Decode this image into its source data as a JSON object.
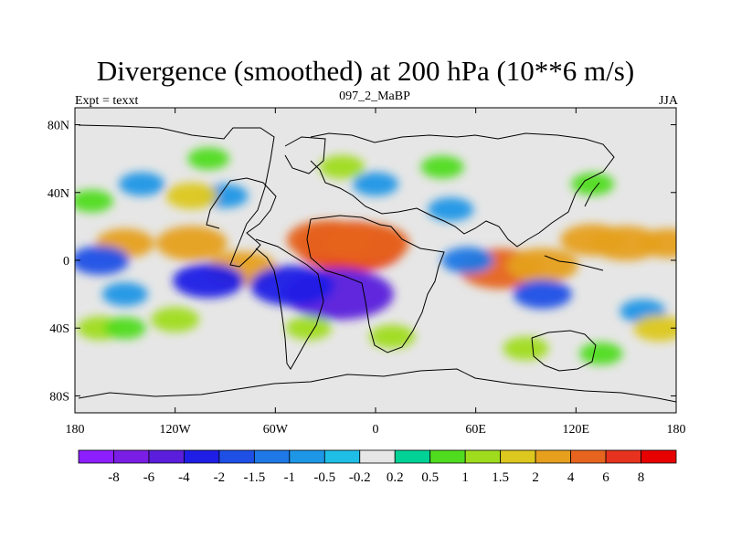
{
  "title": "Divergence (smoothed) at 200 hPa (10**6 m/s)",
  "left_label": "Expt = texxt",
  "center_label": "097_2_MaBP",
  "right_label": "JJA",
  "chart_data": {
    "type": "heatmap",
    "variable": "Divergence (smoothed) at 200 hPa",
    "units": "10**6 m/s",
    "season": "JJA",
    "x_range": [
      -180,
      180
    ],
    "y_range": [
      -90,
      90
    ],
    "x_ticks": [
      {
        "value": -180,
        "label": "180"
      },
      {
        "value": -120,
        "label": "120W"
      },
      {
        "value": -60,
        "label": "60W"
      },
      {
        "value": 0,
        "label": "0"
      },
      {
        "value": 60,
        "label": "60E"
      },
      {
        "value": 120,
        "label": "120E"
      },
      {
        "value": 180,
        "label": "180"
      }
    ],
    "y_ticks": [
      {
        "value": 80,
        "label": "80N"
      },
      {
        "value": 40,
        "label": "40N"
      },
      {
        "value": 0,
        "label": "0"
      },
      {
        "value": -40,
        "label": "40S"
      },
      {
        "value": -80,
        "label": "80S"
      }
    ],
    "contour_levels": [
      -8,
      -6,
      -4,
      -2,
      -1.5,
      -1,
      -0.5,
      -0.2,
      0.2,
      0.5,
      1,
      1.5,
      2,
      4,
      6,
      8
    ],
    "colorbar_labels": [
      "-8",
      "-6",
      "-4",
      "-2",
      "-1.5",
      "-1",
      "-0.5",
      "-0.2",
      "0.2",
      "0.5",
      "1",
      "1.5",
      "2",
      "4",
      "6",
      "8"
    ],
    "colorbar_colors": [
      "#8c1eff",
      "#7a1ee6",
      "#5a1edc",
      "#1e1ee6",
      "#1e50e6",
      "#1e78e6",
      "#1e96e6",
      "#1ebee6",
      "#e6e6e6",
      "#00d296",
      "#50dc1e",
      "#a0dc1e",
      "#dcc81e",
      "#e6a01e",
      "#e6641e",
      "#e6321e",
      "#e60000"
    ],
    "features": [
      {
        "lon": -15,
        "lat": 8,
        "value": 6
      },
      {
        "lon": -28,
        "lat": 12,
        "value": 4
      },
      {
        "lon": -5,
        "lat": 10,
        "value": 4
      },
      {
        "lon": -110,
        "lat": 10,
        "value": 3
      },
      {
        "lon": -150,
        "lat": 10,
        "value": 2
      },
      {
        "lon": 75,
        "lat": -5,
        "value": 4
      },
      {
        "lon": 100,
        "lat": -3,
        "value": 3
      },
      {
        "lon": 150,
        "lat": 10,
        "value": 3
      },
      {
        "lon": 130,
        "lat": 12,
        "value": 2.5
      },
      {
        "lon": 175,
        "lat": 10,
        "value": 2
      },
      {
        "lon": -80,
        "lat": -5,
        "value": 3
      },
      {
        "lon": -22,
        "lat": -20,
        "value": -6
      },
      {
        "lon": -50,
        "lat": -15,
        "value": -4
      },
      {
        "lon": -100,
        "lat": -12,
        "value": -3
      },
      {
        "lon": 100,
        "lat": -20,
        "value": -2
      },
      {
        "lon": -165,
        "lat": 0,
        "value": -2
      },
      {
        "lon": 55,
        "lat": 0,
        "value": -1.5
      },
      {
        "lon": 0,
        "lat": 45,
        "value": -1
      },
      {
        "lon": 45,
        "lat": 30,
        "value": -1
      },
      {
        "lon": -90,
        "lat": 38,
        "value": -1
      },
      {
        "lon": -140,
        "lat": 45,
        "value": -1
      },
      {
        "lon": 160,
        "lat": -30,
        "value": -1
      },
      {
        "lon": -150,
        "lat": -20,
        "value": -1
      },
      {
        "lon": -110,
        "lat": 38,
        "value": 1.5
      },
      {
        "lon": -20,
        "lat": 55,
        "value": 1
      },
      {
        "lon": 40,
        "lat": 55,
        "value": 0.8
      },
      {
        "lon": -100,
        "lat": 60,
        "value": 0.7
      },
      {
        "lon": 130,
        "lat": 45,
        "value": 0.8
      },
      {
        "lon": -170,
        "lat": 35,
        "value": 0.8
      },
      {
        "lon": -120,
        "lat": -35,
        "value": 1.2
      },
      {
        "lon": -165,
        "lat": -40,
        "value": 1
      },
      {
        "lon": 10,
        "lat": -45,
        "value": 1
      },
      {
        "lon": -40,
        "lat": -40,
        "value": 1
      },
      {
        "lon": 90,
        "lat": -52,
        "value": 1
      },
      {
        "lon": 135,
        "lat": -55,
        "value": 0.8
      },
      {
        "lon": 170,
        "lat": -40,
        "value": 1.5
      },
      {
        "lon": -150,
        "lat": -40,
        "value": 0.7
      }
    ]
  }
}
